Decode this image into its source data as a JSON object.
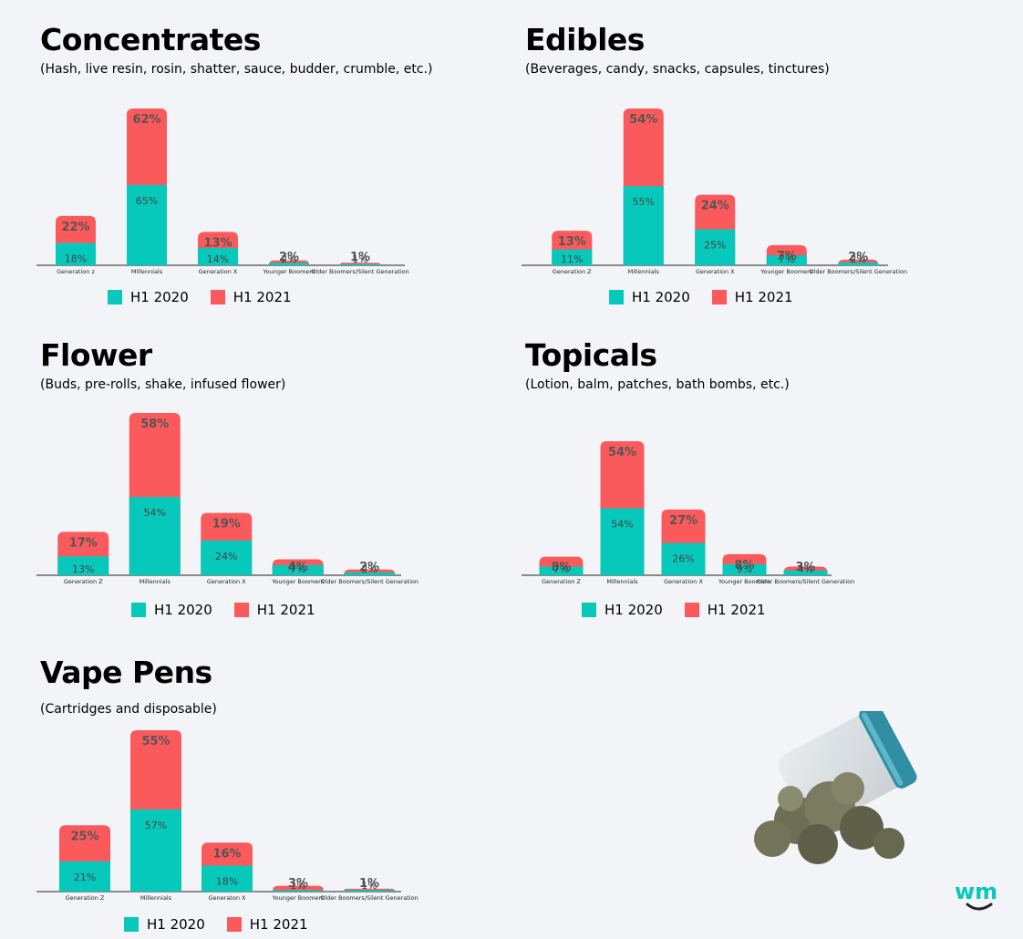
{
  "colors": {
    "h1_2020": "#07c9bb",
    "h1_2021": "#fb5a5d"
  },
  "legend": {
    "h1_2020": "H1 2020",
    "h1_2021": "H1 2021"
  },
  "logo": "wm",
  "image": "cannabis-jar-image",
  "chart_data": [
    {
      "type": "bar",
      "stacked": true,
      "title": "Concentrates",
      "subtitle": "(Hash, live resin, rosin, shatter, sauce, budder, crumble, etc.)",
      "categories": [
        "Generation z",
        "Millennials",
        "Generation X",
        "Younger Boomers",
        "Older Boomers/Silent Generation"
      ],
      "series": [
        {
          "name": "H1 2020",
          "values": [
            18,
            65,
            14,
            2,
            1
          ]
        },
        {
          "name": "H1 2021",
          "values": [
            22,
            62,
            13,
            2,
            1
          ]
        }
      ]
    },
    {
      "type": "bar",
      "stacked": true,
      "title": "Edibles",
      "subtitle": "(Beverages, candy, snacks, capsules, tinctures)",
      "categories": [
        "Generation Z",
        "Millennials",
        "Generation X",
        "Younger Boomers",
        "Older Boomers/Silent Generation"
      ],
      "series": [
        {
          "name": "H1 2020",
          "values": [
            11,
            55,
            25,
            7,
            2
          ]
        },
        {
          "name": "H1 2021",
          "values": [
            13,
            54,
            24,
            7,
            2
          ]
        }
      ]
    },
    {
      "type": "bar",
      "stacked": true,
      "title": "Flower",
      "subtitle": "(Buds, pre-rolls, shake, infused flower)",
      "categories": [
        "Generation Z",
        "Millennials",
        "Generation X",
        "Younger Boomers",
        "Older Boomers/Silent Generation"
      ],
      "series": [
        {
          "name": "H1 2020",
          "values": [
            13,
            54,
            24,
            7,
            2
          ]
        },
        {
          "name": "H1 2021",
          "values": [
            17,
            58,
            19,
            4,
            2
          ]
        }
      ]
    },
    {
      "type": "bar",
      "stacked": true,
      "title": "Topicals",
      "subtitle": "(Lotion, balm, patches, bath bombs, etc.)",
      "categories": [
        "Generation Z",
        "Millennials",
        "Generation X",
        "Younger Boomers",
        "Older Boomers/Silent Generation"
      ],
      "series": [
        {
          "name": "H1 2020",
          "values": [
            7,
            54,
            26,
            9,
            4
          ]
        },
        {
          "name": "H1 2021",
          "values": [
            8,
            54,
            27,
            8,
            3
          ]
        }
      ]
    },
    {
      "type": "bar",
      "stacked": true,
      "title": "Vape Pens",
      "subtitle": "(Cartridges and disposable)",
      "categories": [
        "Generation Z",
        "Millennials",
        "Generaton X",
        "Younger Boomers",
        "Older Boomers/Silent Generation"
      ],
      "series": [
        {
          "name": "H1 2020",
          "values": [
            21,
            57,
            18,
            1,
            1
          ]
        },
        {
          "name": "H1 2021",
          "values": [
            25,
            55,
            16,
            3,
            1
          ]
        }
      ]
    }
  ]
}
